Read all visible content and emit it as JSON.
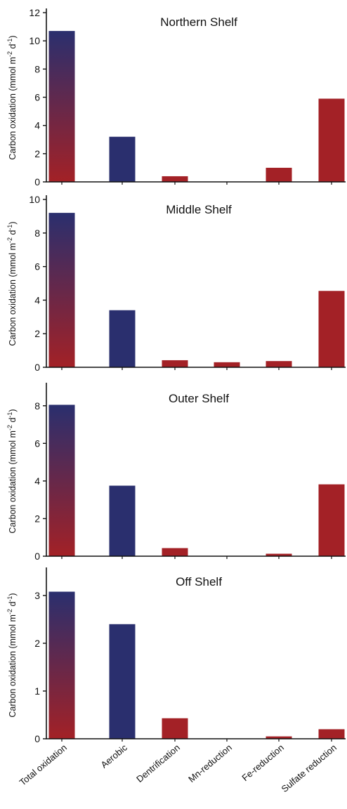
{
  "colors": {
    "blue": "#2a2f6e",
    "red": "#a32126",
    "axis": "#111111"
  },
  "ylabel_parts": {
    "main": "Carbon oxidation (mmol m",
    "sup1": "-2",
    "mid": " d",
    "sup2": "-1",
    "end": ")"
  },
  "categories": [
    "Total oxidation",
    "Aerobic",
    "Dentrification",
    "Mn-reduction",
    "Fe-reduction",
    "Sulfate reduction"
  ],
  "chart_data": [
    {
      "type": "bar",
      "title": "Northern Shelf",
      "categories": [
        "Total oxidation",
        "Aerobic",
        "Dentrification",
        "Mn-reduction",
        "Fe-reduction",
        "Sulfate reduction"
      ],
      "values": [
        10.7,
        3.2,
        0.4,
        0,
        1.0,
        5.9
      ],
      "ylim": [
        0,
        12
      ],
      "yticks": [
        "0",
        "2",
        "4",
        "6",
        "8",
        "10",
        "12"
      ],
      "ylabel": "Carbon oxidation (mmol m-2 d-1)",
      "bar_colors": [
        "gradient",
        "blue",
        "red",
        "red",
        "red",
        "red"
      ]
    },
    {
      "type": "bar",
      "title": "Middle Shelf",
      "categories": [
        "Total oxidation",
        "Aerobic",
        "Dentrification",
        "Mn-reduction",
        "Fe-reduction",
        "Sulfate reduction"
      ],
      "values": [
        9.2,
        3.4,
        0.42,
        0.3,
        0.37,
        4.55
      ],
      "ylim": [
        0,
        10
      ],
      "yticks": [
        "0",
        "2",
        "4",
        "6",
        "8",
        "10"
      ],
      "ylabel": "Carbon oxidation (mmol m-2 d-1)",
      "bar_colors": [
        "gradient",
        "blue",
        "red",
        "red",
        "red",
        "red"
      ]
    },
    {
      "type": "bar",
      "title": "Outer Shelf",
      "categories": [
        "Total oxidation",
        "Aerobic",
        "Dentrification",
        "Mn-reduction",
        "Fe-reduction",
        "Sulfate reduction"
      ],
      "values": [
        8.05,
        3.75,
        0.43,
        0,
        0.13,
        3.82
      ],
      "ylim": [
        0,
        9
      ],
      "yticks": [
        "0",
        "2",
        "4",
        "6",
        "8"
      ],
      "ylabel": "Carbon oxidation (mmol m-2 d-1)",
      "bar_colors": [
        "gradient",
        "blue",
        "red",
        "red",
        "red",
        "red"
      ]
    },
    {
      "type": "bar",
      "title": "Off Shelf",
      "categories": [
        "Total oxidation",
        "Aerobic",
        "Dentrification",
        "Mn-reduction",
        "Fe-reduction",
        "Sulfate reduction"
      ],
      "values": [
        3.08,
        2.4,
        0.43,
        0,
        0.05,
        0.2
      ],
      "ylim": [
        0,
        3.5
      ],
      "yticks": [
        "0",
        "1",
        "2",
        "3"
      ],
      "ylabel": "Carbon oxidation (mmol m-2 d-1)",
      "bar_colors": [
        "gradient",
        "blue",
        "red",
        "red",
        "red",
        "red"
      ]
    }
  ]
}
